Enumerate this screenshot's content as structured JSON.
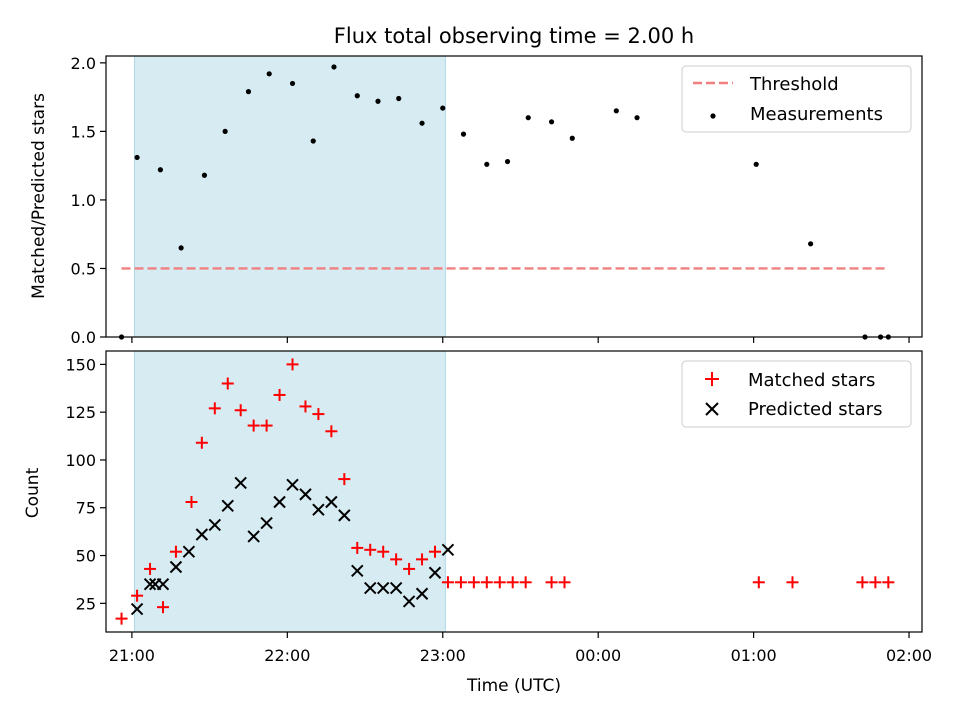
{
  "chart_data": [
    {
      "type": "scatter",
      "title": "Flux total observing time = 2.00 h",
      "xlabel": "",
      "ylabel": "Matched/Predicted stars",
      "ylim": [
        0,
        2.05
      ],
      "xlim": [
        "20:50",
        "02:05"
      ],
      "x_unit": "UTC time (HH:MM, 20:50 to 02:05 across midnight)",
      "yticks": [
        0.0,
        0.5,
        1.0,
        1.5,
        2.0
      ],
      "ytick_labels": [
        "0.0",
        "0.5",
        "1.0",
        "1.5",
        "2.0"
      ],
      "grid": false,
      "legend": "top-right",
      "shaded_region": {
        "x0": "21:01",
        "x1": "23:01",
        "color": "#add8e6"
      },
      "threshold": {
        "name": "Threshold",
        "y": 0.5,
        "x0": "20:56",
        "x1": "01:52",
        "color": "#f08080",
        "style": "dashed"
      },
      "series": [
        {
          "name": "Measurements",
          "marker": "dot",
          "color": "#000000",
          "x": [
            "20:56",
            "21:02",
            "21:11",
            "21:19",
            "21:28",
            "21:36",
            "21:45",
            "21:53",
            "22:02",
            "22:10",
            "22:18",
            "22:27",
            "22:35",
            "22:43",
            "22:52",
            "23:00",
            "23:08",
            "23:17",
            "23:25",
            "23:33",
            "23:42",
            "23:50",
            "00:07",
            "00:15",
            "01:01",
            "01:22",
            "01:43",
            "01:49",
            "01:52"
          ],
          "y": [
            0.0,
            1.31,
            1.22,
            0.65,
            1.18,
            1.5,
            1.79,
            1.92,
            1.85,
            1.43,
            1.97,
            1.76,
            1.72,
            1.74,
            1.56,
            1.67,
            1.48,
            1.26,
            1.28,
            1.6,
            1.57,
            1.45,
            1.65,
            1.6,
            1.26,
            0.68,
            0.0,
            0.0,
            0.0
          ]
        }
      ]
    },
    {
      "type": "scatter",
      "title": "",
      "xlabel": "Time (UTC)",
      "ylabel": "Count",
      "ylim": [
        10,
        157
      ],
      "xlim": [
        "20:50",
        "02:05"
      ],
      "x_unit": "UTC time (HH:MM, 20:50 to 02:05 across midnight)",
      "xticks": [
        "21:00",
        "22:00",
        "23:00",
        "00:00",
        "01:00",
        "02:00"
      ],
      "yticks": [
        25,
        50,
        75,
        100,
        125,
        150
      ],
      "ytick_labels": [
        "25",
        "50",
        "75",
        "100",
        "125",
        "150"
      ],
      "grid": false,
      "legend": "top-right",
      "shaded_region": {
        "x0": "21:01",
        "x1": "23:01",
        "color": "#add8e6"
      },
      "series": [
        {
          "name": "Matched stars",
          "marker": "plus",
          "color": "#ff0000",
          "x": [
            "20:56",
            "21:02",
            "21:07",
            "21:12",
            "21:17",
            "21:23",
            "21:27",
            "21:32",
            "21:37",
            "21:42",
            "21:47",
            "21:52",
            "21:57",
            "22:02",
            "22:07",
            "22:12",
            "22:17",
            "22:22",
            "22:27",
            "22:32",
            "22:37",
            "22:42",
            "22:47",
            "22:52",
            "22:57",
            "23:02",
            "23:07",
            "23:12",
            "23:17",
            "23:22",
            "23:27",
            "23:32",
            "23:42",
            "23:47",
            "01:02",
            "01:15",
            "01:42",
            "01:47",
            "01:52"
          ],
          "y": [
            17,
            29,
            43,
            23,
            52,
            78,
            109,
            127,
            140,
            126,
            118,
            118,
            134,
            150,
            128,
            124,
            115,
            90,
            54,
            53,
            52,
            48,
            43,
            48,
            52,
            36,
            36,
            36,
            36,
            36,
            36,
            36,
            36,
            36,
            36,
            36,
            36,
            36,
            36
          ]
        },
        {
          "name": "Predicted stars",
          "marker": "x",
          "color": "#000000",
          "x": [
            "21:02",
            "21:07",
            "21:09",
            "21:12",
            "21:17",
            "21:22",
            "21:27",
            "21:32",
            "21:37",
            "21:42",
            "21:47",
            "21:52",
            "21:57",
            "22:02",
            "22:07",
            "22:12",
            "22:17",
            "22:22",
            "22:27",
            "22:32",
            "22:37",
            "22:42",
            "22:47",
            "22:52",
            "22:57",
            "23:02"
          ],
          "y": [
            22,
            35,
            35,
            35,
            44,
            52,
            61,
            66,
            76,
            88,
            60,
            67,
            78,
            87,
            82,
            74,
            78,
            71,
            42,
            33,
            33,
            33,
            26,
            30,
            41,
            53
          ]
        }
      ]
    }
  ]
}
